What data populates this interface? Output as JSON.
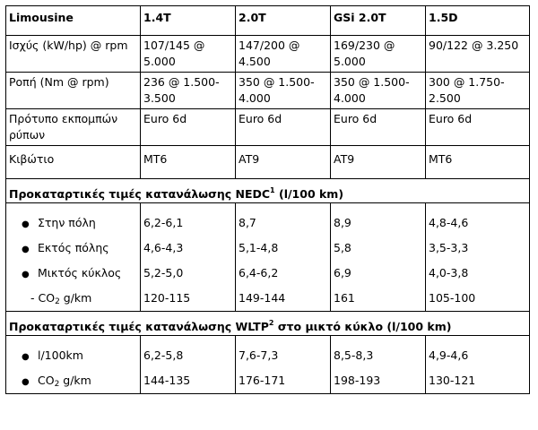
{
  "table": {
    "header": [
      "Limousine",
      "1.4T",
      "2.0T",
      "GSi 2.0T",
      "1.5D"
    ],
    "rows": [
      {
        "label": "Ισχύς (kW/hp) @ rpm",
        "values": [
          "107/145 @ 5.000",
          "147/200 @ 4.500",
          "169/230 @ 5.000",
          "90/122 @ 3.250"
        ]
      },
      {
        "label": "Ροπή (Nm @ rpm)",
        "values": [
          "236 @ 1.500-3.500",
          "350 @ 1.500-4.000",
          "350 @ 1.500-4.000",
          "300 @ 1.750-2.500"
        ]
      },
      {
        "label": "Πρότυπο εκπομπών ρύπων",
        "values": [
          "Euro 6d",
          "Euro 6d",
          "Euro 6d",
          "Euro 6d"
        ]
      },
      {
        "label": "Κιβώτιο",
        "values": [
          "MT6",
          "AT9",
          "AT9",
          "MT6"
        ]
      }
    ],
    "nedc": {
      "title": "Προκαταρτικές τιμές κατανάλωσης NEDC",
      "note": "1",
      "unit": "(l/100 km)",
      "labels": [
        "Στην πόλη",
        "Εκτός πόλης",
        "Μικτός κύκλος",
        "- CO",
        "2",
        " g/km"
      ],
      "col1": [
        "6,2-6,1",
        "4,6-4,3",
        "5,2-5,0",
        "120-115"
      ],
      "col2": [
        "8,7",
        "5,1-4,8",
        "6,4-6,2",
        "149-144"
      ],
      "col3": [
        "8,9",
        "5,8",
        "6,9",
        "161"
      ],
      "col4": [
        "4,8-4,6",
        "3,5-3,3",
        "4,0-3,8",
        "105-100"
      ]
    },
    "wltp": {
      "title": "Προκαταρτικές τιμές κατανάλωσης WLTP",
      "note": "2",
      "unit": "στο μικτό κύκλο (l/100 km)",
      "labels": [
        "l/100km",
        "CO",
        "2",
        " g/km"
      ],
      "col1": [
        "6,2-5,8",
        "144-135"
      ],
      "col2": [
        "7,6-7,3",
        "176-171"
      ],
      "col3": [
        "8,5-8,3",
        "198-193"
      ],
      "col4": [
        "4,9-4,6",
        "130-121"
      ]
    },
    "bullet": "●"
  }
}
